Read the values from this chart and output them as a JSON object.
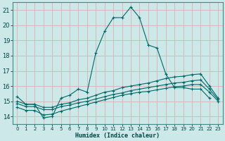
{
  "xlabel": "Humidex (Indice chaleur)",
  "background_color": "#cce8e8",
  "grid_color": "#d8b8b8",
  "line_color": "#006868",
  "xlim": [
    -0.5,
    23.5
  ],
  "ylim": [
    13.5,
    21.5
  ],
  "xticks": [
    0,
    1,
    2,
    3,
    4,
    5,
    6,
    7,
    8,
    9,
    10,
    11,
    12,
    13,
    14,
    15,
    16,
    17,
    18,
    19,
    20,
    21,
    22,
    23
  ],
  "yticks": [
    14,
    15,
    16,
    17,
    18,
    19,
    20,
    21
  ],
  "series": [
    {
      "x": [
        0,
        1,
        2,
        3,
        4,
        5,
        6,
        7,
        8,
        9,
        10,
        11,
        12,
        13,
        14,
        15,
        16,
        17,
        18,
        19,
        20,
        21,
        22
      ],
      "y": [
        15.3,
        14.8,
        14.8,
        13.9,
        14.0,
        15.2,
        15.4,
        15.8,
        15.6,
        18.2,
        19.6,
        20.5,
        20.5,
        21.2,
        20.5,
        18.7,
        18.5,
        16.8,
        15.9,
        15.9,
        15.8,
        15.8,
        15.2
      ]
    },
    {
      "x": [
        0,
        1,
        2,
        3,
        4,
        5,
        6,
        7,
        8,
        9,
        10,
        11,
        12,
        13,
        14,
        15,
        16,
        17,
        18,
        19,
        20,
        21,
        22,
        23
      ],
      "y": [
        15.0,
        14.8,
        14.8,
        14.6,
        14.6,
        14.8,
        14.9,
        15.1,
        15.2,
        15.4,
        15.6,
        15.7,
        15.9,
        16.0,
        16.1,
        16.2,
        16.35,
        16.5,
        16.6,
        16.65,
        16.75,
        16.8,
        16.0,
        15.2
      ]
    },
    {
      "x": [
        0,
        1,
        2,
        3,
        4,
        5,
        6,
        7,
        8,
        9,
        10,
        11,
        12,
        13,
        14,
        15,
        16,
        17,
        18,
        19,
        20,
        21,
        22,
        23
      ],
      "y": [
        14.85,
        14.65,
        14.65,
        14.45,
        14.45,
        14.65,
        14.75,
        14.9,
        15.0,
        15.15,
        15.3,
        15.45,
        15.55,
        15.7,
        15.8,
        15.9,
        16.0,
        16.1,
        16.2,
        16.25,
        16.35,
        16.4,
        15.8,
        15.1
      ]
    },
    {
      "x": [
        0,
        1,
        2,
        3,
        4,
        5,
        6,
        7,
        8,
        9,
        10,
        11,
        12,
        13,
        14,
        15,
        16,
        17,
        18,
        19,
        20,
        21,
        22,
        23
      ],
      "y": [
        14.6,
        14.4,
        14.4,
        14.1,
        14.15,
        14.35,
        14.5,
        14.65,
        14.8,
        14.95,
        15.1,
        15.25,
        15.4,
        15.5,
        15.6,
        15.65,
        15.75,
        15.85,
        15.95,
        16.0,
        16.1,
        16.1,
        15.6,
        15.0
      ]
    }
  ]
}
